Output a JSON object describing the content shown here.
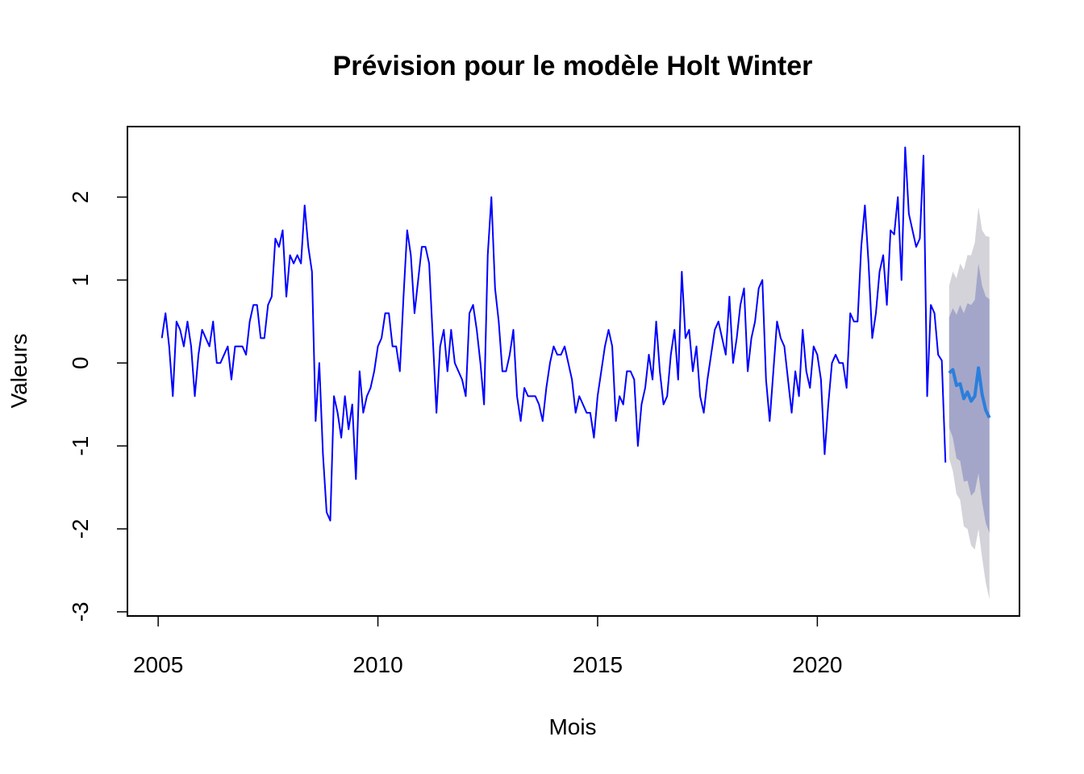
{
  "chart_data": {
    "type": "line",
    "title": "Prévision pour le modèle Holt Winter",
    "xlabel": "Mois",
    "ylabel": "Valeurs",
    "xlim": [
      2004.3,
      2024.6
    ],
    "ylim": [
      -3.05,
      2.85
    ],
    "x_ticks": [
      2005,
      2010,
      2015,
      2020
    ],
    "y_ticks": [
      -3,
      -2,
      -1,
      0,
      1,
      2
    ],
    "grid": false,
    "legend": "none",
    "colors": {
      "observed": "#0000ff",
      "forecast": "#2b7fdc",
      "band80": "#a3a6c9",
      "band95": "#d3d3d9"
    },
    "series": [
      {
        "start": 2005.083,
        "step": 0.08333,
        "values": [
          0.3,
          0.6,
          0.2,
          -0.4,
          0.5,
          0.4,
          0.2,
          0.5,
          0.2,
          -0.4,
          0.1,
          0.4,
          0.3,
          0.2,
          0.5,
          0.0,
          0.0,
          0.1,
          0.2,
          -0.2,
          0.2,
          0.2,
          0.2,
          0.1,
          0.5,
          0.7,
          0.7,
          0.3,
          0.3,
          0.7,
          0.8,
          1.5,
          1.4,
          1.6,
          0.8,
          1.3,
          1.2,
          1.3,
          1.2,
          1.9,
          1.4,
          1.1,
          -0.7,
          0.0,
          -1.1,
          -1.8,
          -1.9,
          -0.4,
          -0.6,
          -0.9,
          -0.4,
          -0.8,
          -0.5,
          -1.4,
          -0.1,
          -0.6,
          -0.4,
          -0.3,
          -0.1,
          0.2,
          0.3,
          0.6,
          0.6,
          0.2,
          0.2,
          -0.1,
          0.8,
          1.6,
          1.3,
          0.6,
          1.0,
          1.4,
          1.4,
          1.2,
          0.3,
          -0.6,
          0.2,
          0.4,
          -0.1,
          0.4,
          0.0,
          -0.1,
          -0.2,
          -0.4,
          0.6,
          0.7,
          0.4,
          0.0,
          -0.5,
          1.3,
          2.0,
          0.9,
          0.5,
          -0.1,
          -0.1,
          0.1,
          0.4,
          -0.4,
          -0.7,
          -0.3,
          -0.4,
          -0.4,
          -0.4,
          -0.5,
          -0.7,
          -0.3,
          0.0,
          0.2,
          0.1,
          0.1,
          0.2,
          0.0,
          -0.2,
          -0.6,
          -0.4,
          -0.5,
          -0.6,
          -0.6,
          -0.9,
          -0.4,
          -0.1,
          0.2,
          0.4,
          0.2,
          -0.7,
          -0.4,
          -0.5,
          -0.1,
          -0.1,
          -0.2,
          -1.0,
          -0.5,
          -0.3,
          0.1,
          -0.2,
          0.5,
          -0.1,
          -0.5,
          -0.4,
          0.1,
          0.4,
          -0.2,
          1.1,
          0.3,
          0.4,
          -0.1,
          0.2,
          -0.4,
          -0.6,
          -0.2,
          0.1,
          0.4,
          0.5,
          0.3,
          0.1,
          0.8,
          0.0,
          0.3,
          0.7,
          0.9,
          -0.1,
          0.3,
          0.5,
          0.9,
          1.0,
          -0.2,
          -0.7,
          -0.1,
          0.5,
          0.3,
          0.2,
          -0.2,
          -0.6,
          -0.1,
          -0.4,
          0.4,
          -0.1,
          -0.3,
          0.2,
          0.1,
          -0.2,
          -1.1,
          -0.5,
          0.0,
          0.1,
          0.0,
          0.0,
          -0.3,
          0.6,
          0.5,
          0.5,
          1.4,
          1.9,
          1.2,
          0.3,
          0.6,
          1.1,
          1.3,
          0.7,
          1.6,
          1.55,
          2.0,
          1.0,
          2.6,
          1.8,
          1.6,
          1.4,
          1.5,
          2.5,
          -0.4,
          0.7,
          0.6,
          0.1,
          0.03,
          -1.2
        ]
      },
      {
        "start": 2023.0,
        "step": 0.08333,
        "values": [
          -0.12,
          -0.08,
          -0.27,
          -0.25,
          -0.43,
          -0.35,
          -0.46,
          -0.4,
          -0.06,
          -0.38,
          -0.57,
          -0.66
        ],
        "lo80": [
          -0.78,
          -0.9,
          -1.15,
          -1.18,
          -1.43,
          -1.42,
          -1.6,
          -1.55,
          -1.33,
          -1.68,
          -1.93,
          -2.05
        ],
        "hi80": [
          0.55,
          0.66,
          0.58,
          0.7,
          0.6,
          0.72,
          0.7,
          0.76,
          1.2,
          0.93,
          0.8,
          0.77
        ],
        "lo95": [
          -1.15,
          -1.3,
          -1.58,
          -1.65,
          -1.97,
          -2.0,
          -2.2,
          -2.25,
          -2.0,
          -2.35,
          -2.65,
          -2.85
        ],
        "hi95": [
          0.93,
          1.1,
          1.02,
          1.2,
          1.12,
          1.3,
          1.3,
          1.45,
          1.88,
          1.6,
          1.53,
          1.52
        ]
      }
    ]
  }
}
